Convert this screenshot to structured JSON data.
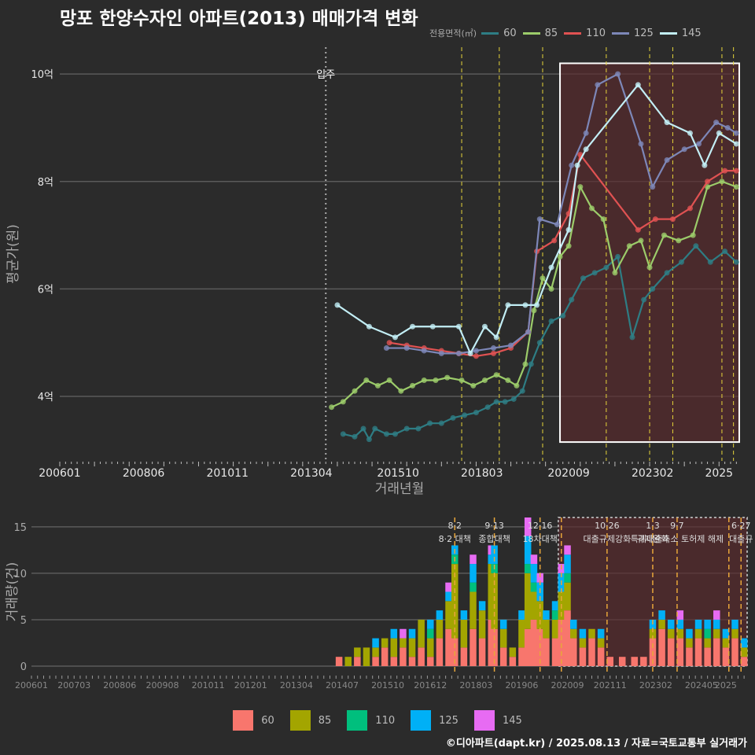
{
  "title": "망포 한양수자인 아파트(2013) 매매가격 변화",
  "footer": "©디아파트(dapt.kr) / 2025.08.13 / 자료=국토교통부 실거래가",
  "colors": {
    "background": "#2b2b2b",
    "box": "#ffffff",
    "highlight_fill": "#5a2a2d",
    "policy_line_top": "#e6d43a",
    "policy_line_bottom": "#e8a63a",
    "move_in_line": "#aaaaaa"
  },
  "chart_data": [
    {
      "type": "line",
      "title": "망포 한양수자인 아파트(2013) 매매가격 변화",
      "xlabel": "거래년월",
      "ylabel": "평균가(원)",
      "legend_title": "전용면적(㎡)",
      "legend_position": "top-right",
      "grid": true,
      "x_range": [
        "2006-01",
        "2025-08"
      ],
      "ylim": [
        2.8,
        10.5
      ],
      "x_ticks": [
        "200601",
        "200806",
        "201011",
        "201304",
        "201510",
        "201803",
        "202009",
        "202302",
        "2025"
      ],
      "y_ticks": [
        {
          "v": 4,
          "label": "4억"
        },
        {
          "v": 6,
          "label": "6억"
        },
        {
          "v": 8,
          "label": "8억"
        },
        {
          "v": 10,
          "label": "10억"
        }
      ],
      "annotations": [
        {
          "x": "2013-09",
          "label": "입주"
        }
      ],
      "policy_lines": [
        "2017-08",
        "2018-09",
        "2019-12",
        "2021-10",
        "2023-01",
        "2023-09",
        "2025-02",
        "2025-06"
      ],
      "highlight_box": {
        "x": [
          "2020-06",
          "2025-08"
        ],
        "y": [
          3.15,
          10.2
        ]
      },
      "series": [
        {
          "name": "60",
          "color": "#2e7d84",
          "points": [
            [
              "2014-03",
              3.3
            ],
            [
              "2014-07",
              3.25
            ],
            [
              "2014-10",
              3.4
            ],
            [
              "2014-12",
              3.2
            ],
            [
              "2015-02",
              3.4
            ],
            [
              "2015-06",
              3.3
            ],
            [
              "2015-09",
              3.3
            ],
            [
              "2016-01",
              3.4
            ],
            [
              "2016-05",
              3.4
            ],
            [
              "2016-09",
              3.5
            ],
            [
              "2017-01",
              3.5
            ],
            [
              "2017-05",
              3.6
            ],
            [
              "2017-09",
              3.65
            ],
            [
              "2018-01",
              3.7
            ],
            [
              "2018-05",
              3.8
            ],
            [
              "2018-08",
              3.9
            ],
            [
              "2018-11",
              3.9
            ],
            [
              "2019-02",
              3.95
            ],
            [
              "2019-05",
              4.1
            ],
            [
              "2019-08",
              4.6
            ],
            [
              "2019-11",
              5.0
            ],
            [
              "2020-03",
              5.4
            ],
            [
              "2020-07",
              5.5
            ],
            [
              "2020-10",
              5.8
            ],
            [
              "2021-02",
              6.2
            ],
            [
              "2021-06",
              6.3
            ],
            [
              "2021-10",
              6.4
            ],
            [
              "2022-02",
              6.6
            ],
            [
              "2022-07",
              5.1
            ],
            [
              "2022-11",
              5.8
            ],
            [
              "2023-02",
              6.0
            ],
            [
              "2023-07",
              6.3
            ],
            [
              "2023-12",
              6.5
            ],
            [
              "2024-05",
              6.8
            ],
            [
              "2024-10",
              6.5
            ],
            [
              "2025-03",
              6.7
            ],
            [
              "2025-07",
              6.5
            ]
          ]
        },
        {
          "name": "85",
          "color": "#9ccc6a",
          "points": [
            [
              "2013-11",
              3.8
            ],
            [
              "2014-03",
              3.9
            ],
            [
              "2014-07",
              4.1
            ],
            [
              "2014-11",
              4.3
            ],
            [
              "2015-03",
              4.2
            ],
            [
              "2015-07",
              4.3
            ],
            [
              "2015-11",
              4.1
            ],
            [
              "2016-03",
              4.2
            ],
            [
              "2016-07",
              4.3
            ],
            [
              "2016-11",
              4.3
            ],
            [
              "2017-03",
              4.35
            ],
            [
              "2017-08",
              4.3
            ],
            [
              "2017-12",
              4.2
            ],
            [
              "2018-04",
              4.3
            ],
            [
              "2018-08",
              4.4
            ],
            [
              "2018-12",
              4.3
            ],
            [
              "2019-03",
              4.2
            ],
            [
              "2019-06",
              4.6
            ],
            [
              "2019-09",
              5.6
            ],
            [
              "2019-12",
              6.2
            ],
            [
              "2020-03",
              6.0
            ],
            [
              "2020-06",
              6.6
            ],
            [
              "2020-09",
              6.8
            ],
            [
              "2021-01",
              7.9
            ],
            [
              "2021-05",
              7.5
            ],
            [
              "2021-09",
              7.3
            ],
            [
              "2022-01",
              6.3
            ],
            [
              "2022-06",
              6.8
            ],
            [
              "2022-10",
              6.9
            ],
            [
              "2023-01",
              6.4
            ],
            [
              "2023-06",
              7.0
            ],
            [
              "2023-11",
              6.9
            ],
            [
              "2024-04",
              7.0
            ],
            [
              "2024-09",
              7.9
            ],
            [
              "2025-02",
              8.0
            ],
            [
              "2025-07",
              7.9
            ]
          ]
        },
        {
          "name": "110",
          "color": "#e05252",
          "points": [
            [
              "2015-07",
              5.0
            ],
            [
              "2016-01",
              4.95
            ],
            [
              "2016-07",
              4.9
            ],
            [
              "2017-01",
              4.85
            ],
            [
              "2017-07",
              4.8
            ],
            [
              "2018-01",
              4.75
            ],
            [
              "2018-07",
              4.8
            ],
            [
              "2019-01",
              4.9
            ],
            [
              "2019-07",
              5.2
            ],
            [
              "2019-10",
              6.7
            ],
            [
              "2020-04",
              6.9
            ],
            [
              "2020-09",
              7.4
            ],
            [
              "2021-01",
              8.5
            ],
            [
              "2022-09",
              7.1
            ],
            [
              "2023-03",
              7.3
            ],
            [
              "2023-09",
              7.3
            ],
            [
              "2024-03",
              7.5
            ],
            [
              "2024-09",
              8.0
            ],
            [
              "2025-03",
              8.2
            ],
            [
              "2025-07",
              8.2
            ]
          ]
        },
        {
          "name": "125",
          "color": "#7d87b8",
          "points": [
            [
              "2015-06",
              4.9
            ],
            [
              "2016-01",
              4.9
            ],
            [
              "2016-07",
              4.85
            ],
            [
              "2017-01",
              4.8
            ],
            [
              "2017-07",
              4.8
            ],
            [
              "2018-01",
              4.85
            ],
            [
              "2018-07",
              4.9
            ],
            [
              "2019-01",
              4.95
            ],
            [
              "2019-07",
              5.2
            ],
            [
              "2019-11",
              7.3
            ],
            [
              "2020-05",
              7.2
            ],
            [
              "2020-10",
              8.3
            ],
            [
              "2021-03",
              8.9
            ],
            [
              "2021-07",
              9.8
            ],
            [
              "2022-02",
              10.0
            ],
            [
              "2022-10",
              8.7
            ],
            [
              "2023-02",
              7.9
            ],
            [
              "2023-07",
              8.4
            ],
            [
              "2024-01",
              8.6
            ],
            [
              "2024-06",
              8.7
            ],
            [
              "2024-12",
              9.1
            ],
            [
              "2025-04",
              9.0
            ],
            [
              "2025-07",
              8.9
            ]
          ]
        },
        {
          "name": "145",
          "color": "#c2eef5",
          "points": [
            [
              "2014-01",
              5.7
            ],
            [
              "2014-12",
              5.3
            ],
            [
              "2015-09",
              5.1
            ],
            [
              "2016-03",
              5.3
            ],
            [
              "2016-10",
              5.3
            ],
            [
              "2017-07",
              5.3
            ],
            [
              "2017-11",
              4.8
            ],
            [
              "2018-04",
              5.3
            ],
            [
              "2018-08",
              5.1
            ],
            [
              "2018-12",
              5.7
            ],
            [
              "2019-06",
              5.7
            ],
            [
              "2019-10",
              5.7
            ],
            [
              "2020-03",
              6.4
            ],
            [
              "2020-09",
              7.1
            ],
            [
              "2020-12",
              8.3
            ],
            [
              "2021-03",
              8.6
            ],
            [
              "2022-09",
              9.8
            ],
            [
              "2023-07",
              9.1
            ],
            [
              "2024-03",
              8.9
            ],
            [
              "2024-08",
              8.3
            ],
            [
              "2025-01",
              8.9
            ],
            [
              "2025-07",
              8.7
            ]
          ]
        }
      ]
    },
    {
      "type": "bar",
      "stacked": true,
      "ylabel": "거래량(건)",
      "legend_position": "bottom",
      "grid": true,
      "x_range": [
        "2006-01",
        "2025-08"
      ],
      "ylim": [
        0,
        16
      ],
      "x_ticks": [
        "200601",
        "200703",
        "200806",
        "200908",
        "201011",
        "201201",
        "201304",
        "201407",
        "201510",
        "201612",
        "201803",
        "201906",
        "202009",
        "202111",
        "202302",
        "202405",
        "2025"
      ],
      "y_ticks": [
        0,
        5,
        10,
        15
      ],
      "policy_lines": [
        "2017-08",
        "2018-09",
        "2019-12",
        "2020-07",
        "2021-10",
        "2023-01",
        "2023-09",
        "2025-02",
        "2025-06"
      ],
      "policy_labels": [
        {
          "x": "2017-08",
          "date": "8·2",
          "text": "8·2 대책"
        },
        {
          "x": "2018-09",
          "date": "9·13",
          "text": "종합대책"
        },
        {
          "x": "2019-12",
          "date": "12·16",
          "text": "18차대책"
        },
        {
          "x": "2021-10",
          "date": "10·26",
          "text": "대출규제강화"
        },
        {
          "x": "2023-01",
          "date": "1·3",
          "text": "규제완화"
        },
        {
          "x": "2023-09",
          "date": "9·7",
          "text": "특례대출축소 토허제 해제"
        },
        {
          "x": "2025-06",
          "date": "6·27",
          "text": "대출규"
        }
      ],
      "highlight_box": {
        "x": [
          "2020-06",
          "2025-08"
        ],
        "y": [
          0,
          16
        ]
      },
      "series_names": [
        "60",
        "85",
        "110",
        "125",
        "145"
      ],
      "series_colors": [
        "#f8766d",
        "#a3a500",
        "#00bf7d",
        "#00b0f6",
        "#e76bf3"
      ],
      "data": [
        [
          "2014-06",
          1,
          0,
          0,
          0,
          0
        ],
        [
          "2014-09",
          0,
          1,
          0,
          0,
          0
        ],
        [
          "2014-12",
          1,
          1,
          0,
          0,
          0
        ],
        [
          "2015-03",
          0,
          2,
          0,
          0,
          0
        ],
        [
          "2015-06",
          1,
          1,
          0,
          1,
          0
        ],
        [
          "2015-09",
          2,
          1,
          0,
          0,
          0
        ],
        [
          "2015-12",
          1,
          2,
          0,
          1,
          0
        ],
        [
          "2016-03",
          2,
          1,
          0,
          0,
          1
        ],
        [
          "2016-06",
          1,
          2,
          0,
          1,
          0
        ],
        [
          "2016-09",
          2,
          3,
          0,
          0,
          0
        ],
        [
          "2016-12",
          1,
          2,
          1,
          1,
          0
        ],
        [
          "2017-03",
          3,
          2,
          0,
          1,
          0
        ],
        [
          "2017-06",
          4,
          3,
          0,
          1,
          1
        ],
        [
          "2017-08",
          3,
          8,
          1,
          1,
          0
        ],
        [
          "2017-11",
          2,
          3,
          0,
          1,
          0
        ],
        [
          "2018-02",
          4,
          4,
          1,
          2,
          1
        ],
        [
          "2018-05",
          3,
          3,
          0,
          1,
          0
        ],
        [
          "2018-08",
          5,
          6,
          0,
          1,
          1
        ],
        [
          "2018-09",
          4,
          6,
          1,
          2,
          0
        ],
        [
          "2018-12",
          2,
          2,
          0,
          1,
          0
        ],
        [
          "2019-03",
          1,
          1,
          0,
          0,
          0
        ],
        [
          "2019-06",
          2,
          3,
          0,
          1,
          0
        ],
        [
          "2019-08",
          4,
          6,
          1,
          3,
          2
        ],
        [
          "2019-10",
          5,
          3,
          1,
          2,
          1
        ],
        [
          "2019-12",
          4,
          3,
          0,
          2,
          1
        ],
        [
          "2020-02",
          3,
          2,
          0,
          1,
          0
        ],
        [
          "2020-05",
          3,
          2,
          1,
          1,
          0
        ],
        [
          "2020-07",
          5,
          3,
          0,
          2,
          1
        ],
        [
          "2020-09",
          6,
          3,
          1,
          2,
          1
        ],
        [
          "2020-11",
          3,
          1,
          0,
          1,
          0
        ],
        [
          "2021-02",
          2,
          1,
          0,
          1,
          0
        ],
        [
          "2021-05",
          3,
          1,
          0,
          0,
          0
        ],
        [
          "2021-08",
          2,
          1,
          0,
          1,
          0
        ],
        [
          "2021-11",
          1,
          0,
          0,
          0,
          0
        ],
        [
          "2022-03",
          1,
          0,
          0,
          0,
          0
        ],
        [
          "2022-07",
          1,
          0,
          0,
          0,
          0
        ],
        [
          "2022-10",
          1,
          0,
          0,
          0,
          0
        ],
        [
          "2023-01",
          3,
          1,
          0,
          1,
          0
        ],
        [
          "2023-04",
          4,
          1,
          0,
          1,
          0
        ],
        [
          "2023-07",
          3,
          1,
          0,
          1,
          0
        ],
        [
          "2023-10",
          3,
          1,
          0,
          1,
          1
        ],
        [
          "2024-01",
          2,
          1,
          0,
          1,
          0
        ],
        [
          "2024-04",
          3,
          1,
          0,
          1,
          0
        ],
        [
          "2024-07",
          2,
          1,
          1,
          1,
          0
        ],
        [
          "2024-10",
          3,
          1,
          0,
          1,
          1
        ],
        [
          "2025-01",
          2,
          1,
          0,
          1,
          0
        ],
        [
          "2025-04",
          3,
          1,
          0,
          1,
          0
        ],
        [
          "2025-07",
          1,
          1,
          0,
          1,
          0
        ]
      ]
    }
  ]
}
